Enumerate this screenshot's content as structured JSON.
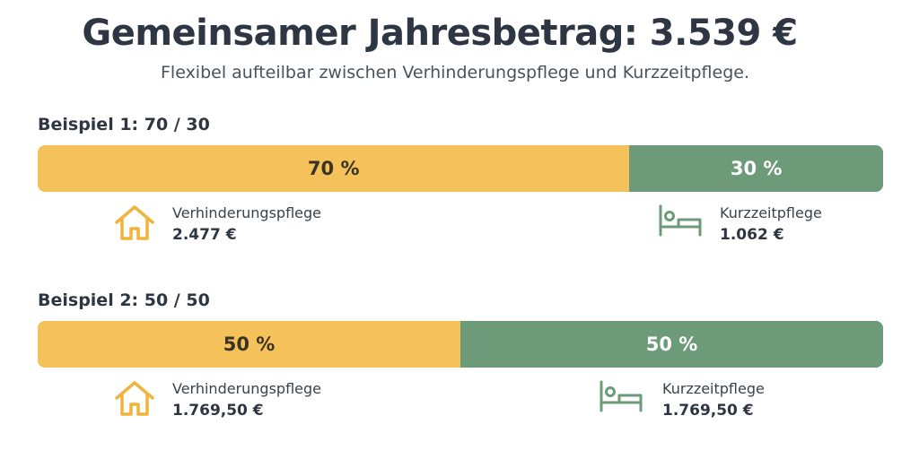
{
  "header": {
    "title": "Gemeinsamer Jahresbetrag: 3.539 €",
    "subtitle": "Flexibel aufteilbar zwischen Verhinderungspflege und Kurzzeitpflege."
  },
  "colors": {
    "verhinderungspflege": "#f5c15a",
    "kurzzeitpflege": "#6d9a79"
  },
  "icons": {
    "verhinderungspflege": "house-icon",
    "kurzzeitpflege": "bed-icon"
  },
  "chart_data": [
    {
      "type": "bar",
      "title": "Beispiel 1: 70 / 30",
      "categories": [
        "Verhinderungspflege",
        "Kurzzeitpflege"
      ],
      "values": [
        70,
        30
      ],
      "value_labels": [
        "70 %",
        "30 %"
      ],
      "amounts": [
        "2.477 €",
        "1.062 €"
      ]
    },
    {
      "type": "bar",
      "title": "Beispiel 2: 50 / 50",
      "categories": [
        "Verhinderungspflege",
        "Kurzzeitpflege"
      ],
      "values": [
        50,
        50
      ],
      "value_labels": [
        "50 %",
        "50 %"
      ],
      "amounts": [
        "1.769,50 €",
        "1.769,50 €"
      ]
    }
  ]
}
